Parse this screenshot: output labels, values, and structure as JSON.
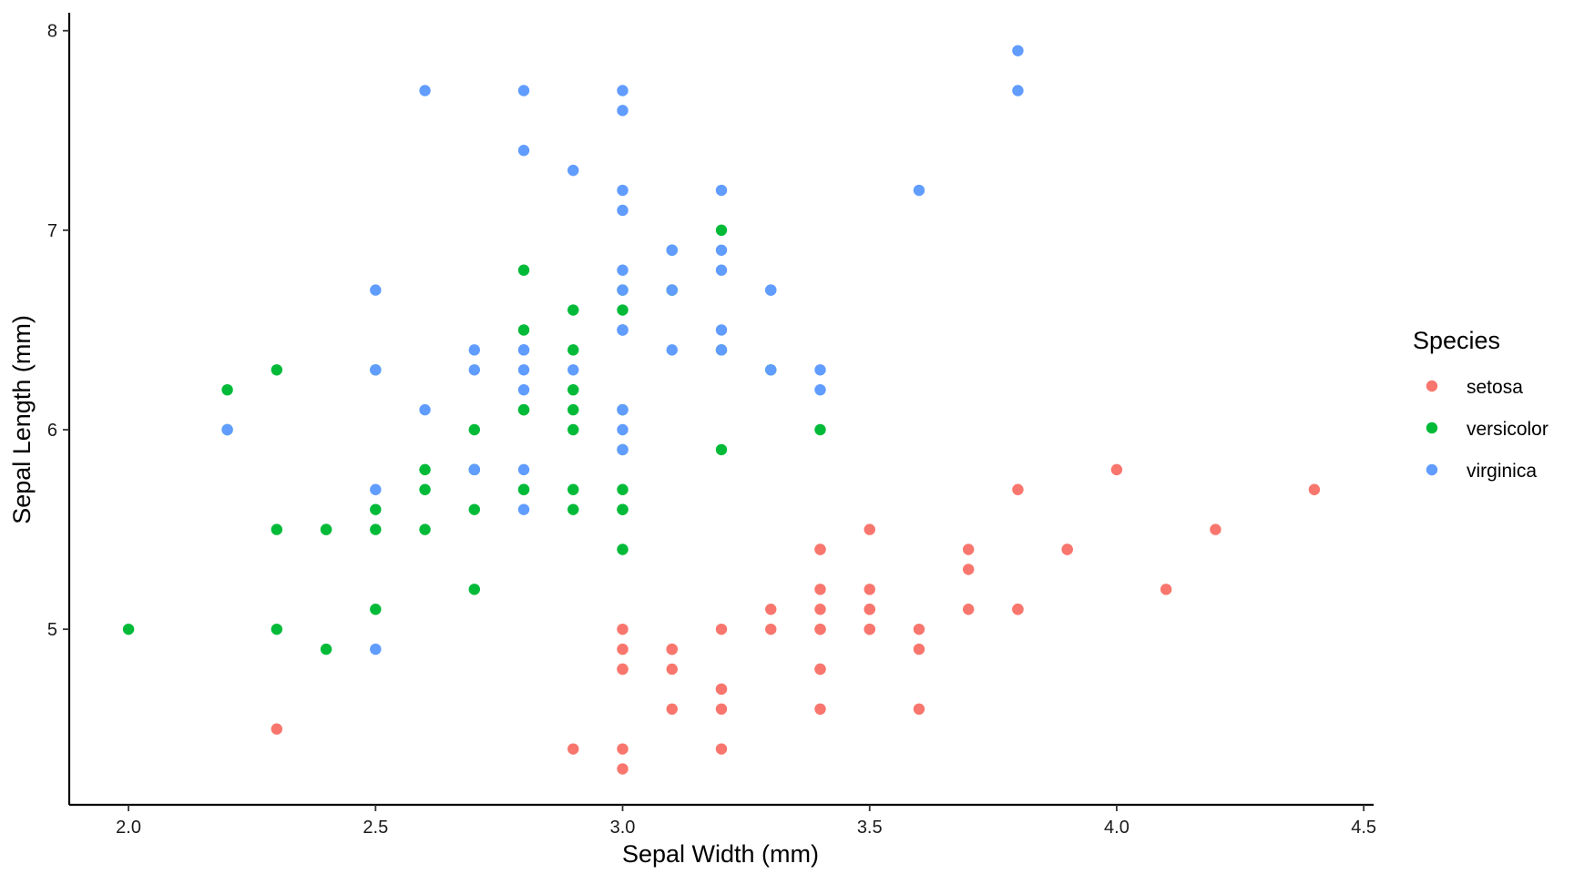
{
  "chart_data": {
    "type": "scatter",
    "title": "",
    "xlabel": "Sepal Width (mm)",
    "ylabel": "Sepal Length (mm)",
    "xlim": [
      1.88,
      4.52
    ],
    "ylim": [
      4.12,
      8.09
    ],
    "x_ticks": [
      2.0,
      2.5,
      3.0,
      3.5,
      4.0,
      4.5
    ],
    "x_tick_labels": [
      "2.0",
      "2.5",
      "3.0",
      "3.5",
      "4.0",
      "4.5"
    ],
    "y_ticks": [
      5,
      6,
      7,
      8
    ],
    "y_tick_labels": [
      "5",
      "6",
      "7",
      "8"
    ],
    "grid": false,
    "legend": {
      "title": "Species",
      "position": "right"
    },
    "series": [
      {
        "name": "setosa",
        "color": "#F8766D",
        "points": [
          [
            3.5,
            5.1
          ],
          [
            3.0,
            4.9
          ],
          [
            3.2,
            4.7
          ],
          [
            3.1,
            4.6
          ],
          [
            3.6,
            5.0
          ],
          [
            3.9,
            5.4
          ],
          [
            3.4,
            4.6
          ],
          [
            3.4,
            5.0
          ],
          [
            2.9,
            4.4
          ],
          [
            3.1,
            4.9
          ],
          [
            3.7,
            5.4
          ],
          [
            3.4,
            4.8
          ],
          [
            3.0,
            4.8
          ],
          [
            3.0,
            4.3
          ],
          [
            4.0,
            5.8
          ],
          [
            4.4,
            5.7
          ],
          [
            3.9,
            5.4
          ],
          [
            3.5,
            5.1
          ],
          [
            3.8,
            5.7
          ],
          [
            3.8,
            5.1
          ],
          [
            3.4,
            5.4
          ],
          [
            3.7,
            5.1
          ],
          [
            3.6,
            4.6
          ],
          [
            3.3,
            5.1
          ],
          [
            3.4,
            4.8
          ],
          [
            3.0,
            5.0
          ],
          [
            3.4,
            5.0
          ],
          [
            3.5,
            5.2
          ],
          [
            3.4,
            5.2
          ],
          [
            3.2,
            4.7
          ],
          [
            3.1,
            4.8
          ],
          [
            3.4,
            5.4
          ],
          [
            4.1,
            5.2
          ],
          [
            4.2,
            5.5
          ],
          [
            3.1,
            4.9
          ],
          [
            3.2,
            5.0
          ],
          [
            3.5,
            5.5
          ],
          [
            3.6,
            4.9
          ],
          [
            3.0,
            4.4
          ],
          [
            3.4,
            5.1
          ],
          [
            3.5,
            5.0
          ],
          [
            2.3,
            4.5
          ],
          [
            3.2,
            4.4
          ],
          [
            3.5,
            5.0
          ],
          [
            3.8,
            5.1
          ],
          [
            3.0,
            4.8
          ],
          [
            3.8,
            5.1
          ],
          [
            3.2,
            4.6
          ],
          [
            3.7,
            5.3
          ],
          [
            3.3,
            5.0
          ]
        ]
      },
      {
        "name": "versicolor",
        "color": "#00BA38",
        "points": [
          [
            3.2,
            7.0
          ],
          [
            3.2,
            6.4
          ],
          [
            3.1,
            6.9
          ],
          [
            2.3,
            5.5
          ],
          [
            2.8,
            6.5
          ],
          [
            2.8,
            5.7
          ],
          [
            3.3,
            6.3
          ],
          [
            2.4,
            4.9
          ],
          [
            2.9,
            6.6
          ],
          [
            2.7,
            5.2
          ],
          [
            2.0,
            5.0
          ],
          [
            3.0,
            5.9
          ],
          [
            2.2,
            6.0
          ],
          [
            2.9,
            6.1
          ],
          [
            2.9,
            5.6
          ],
          [
            3.1,
            6.7
          ],
          [
            3.0,
            5.6
          ],
          [
            2.7,
            5.8
          ],
          [
            2.2,
            6.2
          ],
          [
            2.5,
            5.6
          ],
          [
            3.2,
            5.9
          ],
          [
            2.8,
            6.1
          ],
          [
            2.5,
            6.3
          ],
          [
            2.8,
            6.1
          ],
          [
            2.9,
            6.4
          ],
          [
            3.0,
            6.6
          ],
          [
            2.8,
            6.8
          ],
          [
            3.0,
            6.7
          ],
          [
            2.9,
            6.0
          ],
          [
            2.6,
            5.7
          ],
          [
            2.4,
            5.5
          ],
          [
            2.4,
            5.5
          ],
          [
            2.7,
            5.8
          ],
          [
            2.7,
            6.0
          ],
          [
            3.0,
            5.4
          ],
          [
            3.4,
            6.0
          ],
          [
            3.1,
            6.7
          ],
          [
            2.3,
            6.3
          ],
          [
            3.0,
            5.6
          ],
          [
            2.5,
            5.5
          ],
          [
            2.6,
            5.5
          ],
          [
            3.0,
            6.1
          ],
          [
            2.6,
            5.8
          ],
          [
            2.3,
            5.0
          ],
          [
            2.7,
            5.6
          ],
          [
            3.0,
            5.7
          ],
          [
            2.9,
            5.7
          ],
          [
            2.9,
            6.2
          ],
          [
            2.5,
            5.1
          ],
          [
            2.8,
            5.7
          ]
        ]
      },
      {
        "name": "virginica",
        "color": "#619CFF",
        "points": [
          [
            3.3,
            6.3
          ],
          [
            2.7,
            5.8
          ],
          [
            3.0,
            7.1
          ],
          [
            2.9,
            6.3
          ],
          [
            3.0,
            6.5
          ],
          [
            3.0,
            7.6
          ],
          [
            2.5,
            4.9
          ],
          [
            2.9,
            7.3
          ],
          [
            2.5,
            6.7
          ],
          [
            3.6,
            7.2
          ],
          [
            3.2,
            6.5
          ],
          [
            2.7,
            6.4
          ],
          [
            3.0,
            6.8
          ],
          [
            2.5,
            5.7
          ],
          [
            2.8,
            5.8
          ],
          [
            3.2,
            6.4
          ],
          [
            3.0,
            6.5
          ],
          [
            3.8,
            7.7
          ],
          [
            2.6,
            7.7
          ],
          [
            2.2,
            6.0
          ],
          [
            3.2,
            6.9
          ],
          [
            2.8,
            5.6
          ],
          [
            2.8,
            7.7
          ],
          [
            2.7,
            6.3
          ],
          [
            3.3,
            6.7
          ],
          [
            3.2,
            7.2
          ],
          [
            2.8,
            6.2
          ],
          [
            3.0,
            6.1
          ],
          [
            2.8,
            6.4
          ],
          [
            3.0,
            7.2
          ],
          [
            2.8,
            7.4
          ],
          [
            3.8,
            7.9
          ],
          [
            2.8,
            6.4
          ],
          [
            2.8,
            6.3
          ],
          [
            2.6,
            6.1
          ],
          [
            3.0,
            7.7
          ],
          [
            3.4,
            6.3
          ],
          [
            3.1,
            6.4
          ],
          [
            3.0,
            6.0
          ],
          [
            3.1,
            6.9
          ],
          [
            3.1,
            6.7
          ],
          [
            3.1,
            6.9
          ],
          [
            2.7,
            5.8
          ],
          [
            3.2,
            6.8
          ],
          [
            3.3,
            6.7
          ],
          [
            3.0,
            6.7
          ],
          [
            2.5,
            6.3
          ],
          [
            3.0,
            6.5
          ],
          [
            3.4,
            6.2
          ],
          [
            3.0,
            5.9
          ]
        ]
      }
    ]
  }
}
